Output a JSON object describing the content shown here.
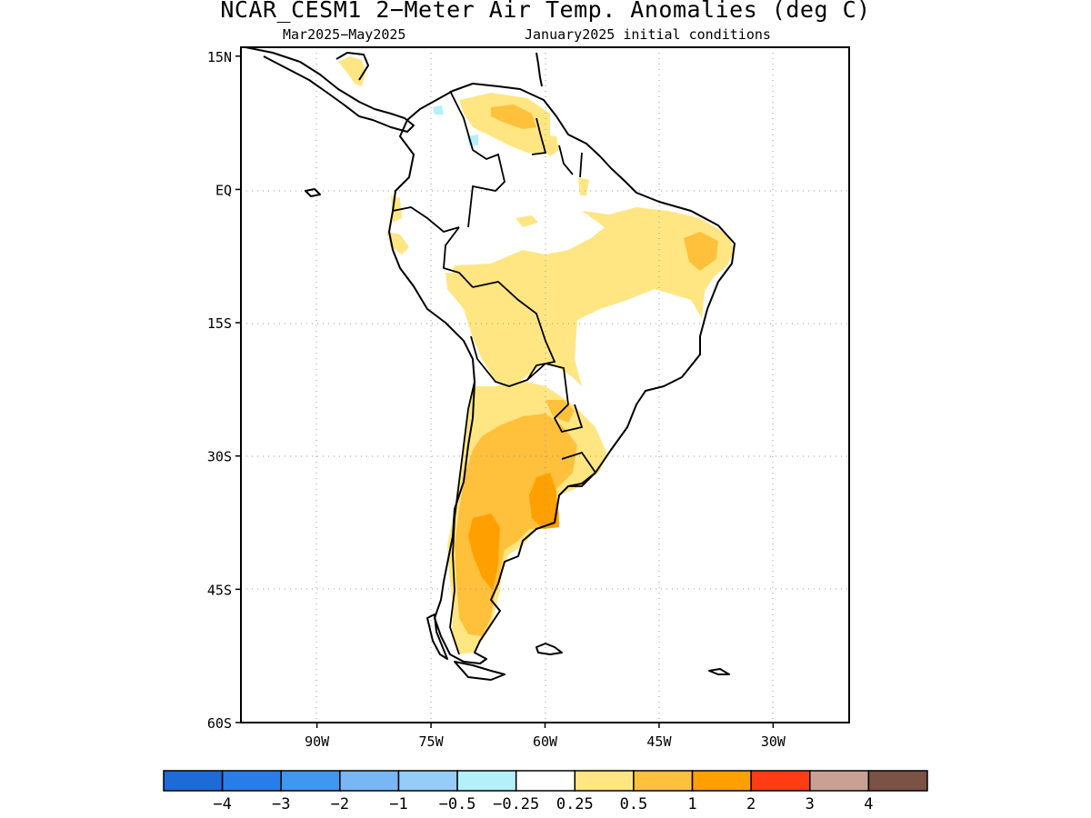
{
  "title": "NCAR_CESM1 2−Meter Air Temp. Anomalies (deg C)",
  "subtitle_left": "Mar2025−May2025",
  "subtitle_right": "January2025 initial conditions",
  "map": {
    "lat_labels": [
      "15N",
      "EQ",
      "15S",
      "30S",
      "45S",
      "60S"
    ],
    "lat_values": [
      15,
      0,
      -15,
      -30,
      -45,
      -60
    ],
    "lon_labels": [
      "90W",
      "75W",
      "60W",
      "45W",
      "30W"
    ],
    "lon_values": [
      -90,
      -75,
      -60,
      -45,
      -30
    ],
    "lon_range": [
      -100,
      -20
    ],
    "lat_range": [
      -60,
      16
    ],
    "grid": "dotted"
  },
  "colorbar": {
    "colors": [
      "#1e6bd6",
      "#2a7ce8",
      "#4196f0",
      "#78b6f4",
      "#96ccf8",
      "#b4f0fa",
      "#ffffff",
      "#ffe682",
      "#ffc03c",
      "#ffa000",
      "#ff3c14",
      "#c8a094",
      "#7a5246"
    ],
    "labels": [
      "−4",
      "−3",
      "−2",
      "−1",
      "−0.5",
      "−0.25",
      "0.25",
      "0.5",
      "1",
      "2",
      "3",
      "4"
    ]
  },
  "anomaly_regions": [
    {
      "level": "0.25-0.5",
      "color": "#ffe682"
    },
    {
      "level": "0.5-1",
      "color": "#ffc03c"
    },
    {
      "level": "1-2",
      "color": "#ffa000"
    },
    {
      "level": "-0.5--0.25",
      "color": "#b4f0fa"
    }
  ]
}
